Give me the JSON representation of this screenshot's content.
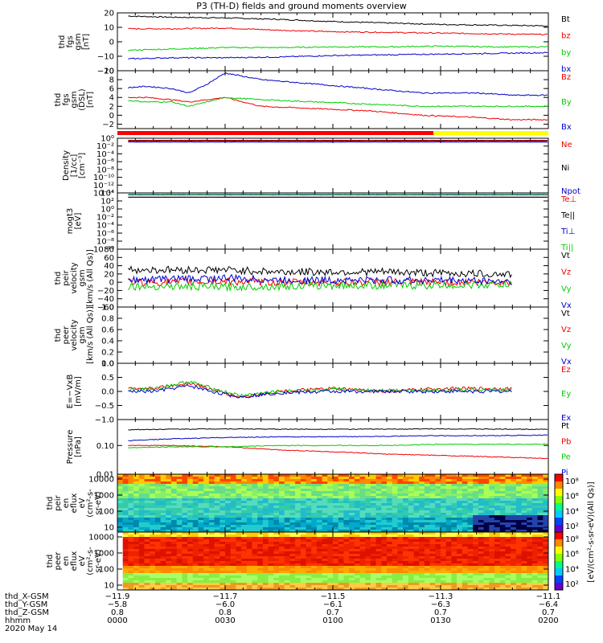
{
  "title": "P3 (TH-D) fields and ground moments overview",
  "chart_data": [
    {
      "type": "line",
      "id": "fgs",
      "ylabel": [
        "thd",
        "fgs",
        "gsm",
        "[nT]"
      ],
      "ylim": [
        -20,
        20
      ],
      "yticks": [
        "20",
        "10",
        "0",
        "−10",
        "−20"
      ],
      "ytick_values": [
        20,
        10,
        0,
        -10,
        -20
      ],
      "series": [
        {
          "name": "Bt",
          "color": "#000000",
          "x": [
            0,
            15,
            30,
            45,
            60,
            75,
            90,
            105,
            120
          ],
          "values": [
            18,
            17,
            16.5,
            15.5,
            14,
            13,
            12,
            11.5,
            11
          ]
        },
        {
          "name": "bz",
          "color": "#ee0000",
          "x": [
            0,
            15,
            30,
            45,
            60,
            75,
            90,
            105,
            120
          ],
          "values": [
            9,
            9,
            9.5,
            8,
            7,
            6.5,
            6,
            5.5,
            5
          ]
        },
        {
          "name": "by",
          "color": "#00cc00",
          "x": [
            0,
            15,
            30,
            45,
            60,
            75,
            90,
            105,
            120
          ],
          "values": [
            -6,
            -5,
            -4,
            -4,
            -3.5,
            -3.5,
            -3,
            -3.5,
            -3.5
          ]
        },
        {
          "name": "bx",
          "color": "#0000cc",
          "x": [
            0,
            15,
            30,
            45,
            60,
            75,
            90,
            105,
            120
          ],
          "values": [
            -12,
            -11,
            -11,
            -10.5,
            -9.5,
            -9,
            -8.5,
            -8,
            -7.5
          ]
        }
      ]
    },
    {
      "type": "line",
      "id": "fgm",
      "ylabel": [
        "thd",
        "fgs",
        "gsm",
        "(DSL)",
        "[nT]"
      ],
      "ylim": [
        -3,
        10
      ],
      "yticks": [
        "10",
        "8",
        "6",
        "4",
        "2",
        "0",
        "−2"
      ],
      "ytick_values": [
        10,
        8,
        6,
        4,
        2,
        0,
        -2
      ],
      "series": [
        {
          "name": "Bz",
          "color": "#ee0000",
          "x": [
            0,
            8,
            15,
            20,
            25,
            30,
            40,
            55,
            70,
            85,
            100,
            110,
            120
          ],
          "values": [
            4,
            4,
            3.5,
            3,
            3.5,
            4,
            2,
            1.5,
            1,
            0,
            -0.5,
            -1,
            -1
          ]
        },
        {
          "name": "By",
          "color": "#00cc00",
          "x": [
            0,
            8,
            15,
            20,
            25,
            30,
            40,
            55,
            70,
            85,
            100,
            110,
            120
          ],
          "values": [
            3.5,
            3,
            3,
            2,
            3,
            4,
            3.5,
            3,
            2.5,
            2,
            2,
            2,
            2
          ]
        },
        {
          "name": "Bx",
          "color": "#0000cc",
          "x": [
            0,
            8,
            15,
            20,
            25,
            30,
            40,
            55,
            70,
            85,
            100,
            110,
            120
          ],
          "values": [
            6,
            6.5,
            6,
            5,
            7,
            9.5,
            8,
            7,
            6,
            5,
            5,
            4.5,
            4.5
          ]
        }
      ]
    },
    {
      "type": "line",
      "id": "density",
      "ylog": true,
      "ylabel": [
        "Density",
        "[1/cc]",
        "[cm⁻³]"
      ],
      "ylim": [
        1e-14,
        1
      ],
      "yticks": [
        "10⁰",
        "10⁻²",
        "10⁻⁴",
        "10⁻⁶",
        "10⁻⁸",
        "10⁻¹⁰",
        "10⁻¹²",
        "10⁻¹⁴"
      ],
      "ytick_values": [
        1,
        0.01,
        0.0001,
        1e-06,
        1e-08,
        1e-10,
        1e-12,
        1e-14
      ],
      "series": [
        {
          "name": "Ne",
          "color": "#ee0000",
          "x": [
            0,
            120
          ],
          "values": [
            0.3,
            0.3
          ]
        },
        {
          "name": "Ni",
          "color": "#000000",
          "x": [
            0,
            120
          ],
          "values": [
            0.2,
            0.2
          ]
        },
        {
          "name": "Npot",
          "color": "#0000cc",
          "x": [
            0,
            120
          ],
          "values": [
            0.1,
            0.1
          ]
        }
      ]
    },
    {
      "type": "line",
      "id": "temp",
      "ylog": true,
      "ylabel": [
        "mogt3",
        "[eV]"
      ],
      "ylim": [
        1e-10,
        10000.0
      ],
      "yticks": [
        "10⁴",
        "10²",
        "10⁰",
        "10⁻²",
        "10⁻⁴",
        "10⁻⁶",
        "10⁻⁸",
        "10⁻¹⁰"
      ],
      "ytick_values": [
        10000.0,
        100.0,
        1,
        0.01,
        0.0001,
        1e-06,
        1e-08,
        1e-10
      ],
      "series": [
        {
          "name": "Te⊥",
          "color": "#ee0000",
          "x": [
            0,
            120
          ],
          "values": [
            800,
            800
          ]
        },
        {
          "name": "Te||",
          "color": "#000000",
          "x": [
            0,
            120
          ],
          "values": [
            900,
            900
          ]
        },
        {
          "name": "Ti⊥",
          "color": "#0000cc",
          "x": [
            0,
            120
          ],
          "values": [
            4000,
            4000
          ]
        },
        {
          "name": "Ti||",
          "color": "#00cc00",
          "x": [
            0,
            120
          ],
          "values": [
            3000,
            3000
          ]
        }
      ]
    },
    {
      "type": "line",
      "id": "peir_vel",
      "ylabel": [
        "thd",
        "peir",
        "velocity",
        "gsm",
        "[km/s (All Qs)]"
      ],
      "ylim": [
        -60,
        80
      ],
      "yticks": [
        "80",
        "60",
        "40",
        "20",
        "0",
        "−20",
        "−40",
        "−60"
      ],
      "ytick_values": [
        80,
        60,
        40,
        20,
        0,
        -20,
        -40,
        -60
      ],
      "series": [
        {
          "name": "Vt",
          "color": "#000000",
          "x": [
            0,
            15,
            30,
            45,
            60,
            75,
            90,
            105,
            110
          ],
          "values": [
            30,
            30,
            30,
            25,
            25,
            25,
            22,
            20,
            20
          ]
        },
        {
          "name": "Vz",
          "color": "#ee0000",
          "x": [
            0,
            15,
            30,
            45,
            60,
            75,
            90,
            105,
            110
          ],
          "values": [
            0,
            0,
            2,
            0,
            0,
            0,
            0,
            0,
            0
          ]
        },
        {
          "name": "Vy",
          "color": "#00cc00",
          "x": [
            0,
            15,
            30,
            45,
            60,
            75,
            90,
            105,
            110
          ],
          "values": [
            -10,
            -10,
            -12,
            -10,
            -8,
            -8,
            -8,
            -6,
            -6
          ]
        },
        {
          "name": "Vx",
          "color": "#0000cc",
          "x": [
            0,
            15,
            30,
            45,
            60,
            75,
            90,
            105,
            110
          ],
          "values": [
            5,
            8,
            10,
            5,
            5,
            5,
            5,
            3,
            3
          ]
        }
      ]
    },
    {
      "type": "line",
      "id": "peer_vel",
      "ylabel": [
        "thd",
        "peer",
        "velocity",
        "gsm",
        "[km/s (All Qs)]"
      ],
      "ylim": [
        0,
        1
      ],
      "yticks": [
        "1.0",
        "0.8",
        "0.6",
        "0.4",
        "0.2",
        "0.0"
      ],
      "ytick_values": [
        1,
        0.8,
        0.6,
        0.4,
        0.2,
        0
      ],
      "series": [
        {
          "name": "Vt",
          "color": "#000000",
          "x": [],
          "values": []
        },
        {
          "name": "Vz",
          "color": "#ee0000",
          "x": [],
          "values": []
        },
        {
          "name": "Vy",
          "color": "#00cc00",
          "x": [],
          "values": []
        },
        {
          "name": "Vx",
          "color": "#0000cc",
          "x": [],
          "values": []
        }
      ]
    },
    {
      "type": "line",
      "id": "efield",
      "ylabel": [
        "E=−VxB",
        "[mV/m]"
      ],
      "ylim": [
        -1,
        1
      ],
      "yticks": [
        "1.0",
        "0.5",
        "0.0",
        "−0.5",
        "−1.0"
      ],
      "ytick_values": [
        1,
        0.5,
        0,
        -0.5,
        -1
      ],
      "series": [
        {
          "name": "Ez",
          "color": "#ee0000",
          "x": [
            0,
            10,
            20,
            28,
            34,
            45,
            60,
            75,
            90,
            105,
            110
          ],
          "values": [
            0.1,
            0.1,
            0.3,
            0,
            -0.2,
            0,
            0.1,
            0,
            0.1,
            0.1,
            0.1
          ]
        },
        {
          "name": "Ey",
          "color": "#00cc00",
          "x": [
            0,
            10,
            20,
            28,
            34,
            45,
            60,
            75,
            90,
            105,
            110
          ],
          "values": [
            0.05,
            0.1,
            0.35,
            0.05,
            -0.15,
            0,
            0.05,
            0.05,
            0.05,
            0.05,
            0.05
          ]
        },
        {
          "name": "Ex",
          "color": "#0000cc",
          "x": [
            0,
            10,
            20,
            28,
            34,
            45,
            60,
            75,
            90,
            105,
            110
          ],
          "values": [
            0,
            0,
            0.2,
            -0.05,
            -0.2,
            -0.05,
            0,
            0,
            0,
            0,
            0
          ]
        }
      ]
    },
    {
      "type": "line",
      "id": "pressure",
      "ylog": true,
      "ylabel": [
        "Pressure",
        "[nPa]"
      ],
      "ylim": [
        0.01,
        0.8
      ],
      "yticks": [
        "0.10",
        "0.01"
      ],
      "ytick_values": [
        0.1,
        0.01
      ],
      "series": [
        {
          "name": "Pt",
          "color": "#000000",
          "x": [
            0,
            15,
            30,
            45,
            60,
            75,
            90,
            105,
            120
          ],
          "values": [
            0.35,
            0.37,
            0.38,
            0.37,
            0.37,
            0.37,
            0.38,
            0.37,
            0.37
          ]
        },
        {
          "name": "Pb",
          "color": "#ee0000",
          "x": [
            0,
            15,
            30,
            45,
            60,
            75,
            90,
            105,
            120
          ],
          "values": [
            0.1,
            0.1,
            0.09,
            0.07,
            0.06,
            0.05,
            0.045,
            0.04,
            0.035
          ]
        },
        {
          "name": "Pe",
          "color": "#00cc00",
          "x": [
            0,
            15,
            30,
            45,
            60,
            75,
            90,
            105,
            120
          ],
          "values": [
            0.08,
            0.09,
            0.09,
            0.1,
            0.1,
            0.1,
            0.11,
            0.11,
            0.11
          ]
        },
        {
          "name": "Pi",
          "color": "#0000cc",
          "x": [
            0,
            15,
            30,
            45,
            60,
            75,
            90,
            105,
            120
          ],
          "values": [
            0.14,
            0.17,
            0.19,
            0.2,
            0.2,
            0.21,
            0.22,
            0.22,
            0.23
          ]
        }
      ]
    },
    {
      "type": "heatmap",
      "id": "peir_spec",
      "ylog": true,
      "ylabel": [
        "thd",
        "peir",
        "en",
        "eflux",
        "eV",
        "(cm²-s-",
        "sr-eV)"
      ],
      "ylim": [
        5,
        20000
      ],
      "yticks": [
        "10000",
        "1000",
        "100",
        "10"
      ],
      "ytick_values": [
        10000,
        1000,
        100,
        10
      ],
      "colorbar": {
        "label": "[eV/(cm²-s-sr-eV)(All Qs)]",
        "ticks": [
          "10⁸",
          "10⁶",
          "10⁴",
          "10²"
        ]
      }
    },
    {
      "type": "heatmap",
      "id": "peer_spec",
      "ylog": true,
      "ylabel": [
        "thd",
        "peer",
        "en",
        "eflux",
        "eV",
        "(cm²-s-",
        "sr-eV)"
      ],
      "ylim": [
        5,
        20000
      ],
      "yticks": [
        "10000",
        "1000",
        "100",
        "10"
      ],
      "ytick_values": [
        10000,
        1000,
        100,
        10
      ],
      "colorbar": {
        "label": "[eV/(cm²-s-sr-eV)]",
        "ticks": [
          "10⁸",
          "10⁶",
          "10⁴",
          "10²"
        ]
      }
    }
  ],
  "xaxis": {
    "minutes": [
      0,
      30,
      60,
      90,
      120
    ],
    "rows": [
      {
        "name": "thd_X-GSM",
        "values": [
          "−11.9",
          "−11.7",
          "−11.5",
          "−11.3",
          "−11.1"
        ]
      },
      {
        "name": "thd_Y-GSM",
        "values": [
          "−5.8",
          "−6.0",
          "−6.1",
          "−6.3",
          "−6.4"
        ]
      },
      {
        "name": "thd_Z-GSM",
        "values": [
          "0.8",
          "0.8",
          "0.7",
          "0.7",
          "0.7"
        ]
      },
      {
        "name": "hhmm",
        "values": [
          "0000",
          "0030",
          "0100",
          "0130",
          "0200"
        ]
      }
    ],
    "date": "2020 May 14"
  }
}
